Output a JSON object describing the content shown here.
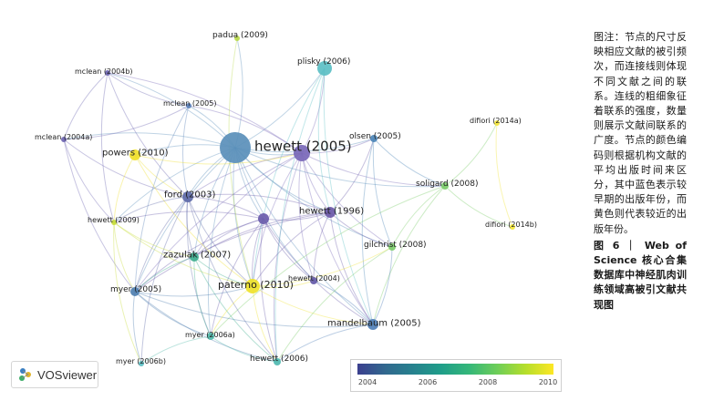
{
  "nodes": [
    {
      "id": "hewett2005",
      "label": "hewett (2005)",
      "color": "#5a8fba"
    },
    {
      "id": "plisky2006",
      "label": "plisky (2006)",
      "color": "#5bbfc4"
    },
    {
      "id": "padua2009",
      "label": "padua (2009)",
      "color": "#b9d94a"
    },
    {
      "id": "mclean2004b",
      "label": "mclean (2004b)",
      "color": "#6a63b0"
    },
    {
      "id": "mclean2005",
      "label": "mclean (2005)",
      "color": "#5a80b8"
    },
    {
      "id": "mclean2004a",
      "label": "mclean (2004a)",
      "color": "#6f66b3"
    },
    {
      "id": "powers2010",
      "label": "powers (2010)",
      "color": "#f0e02a"
    },
    {
      "id": "olsen2005",
      "label": "olsen (2005)",
      "color": "#4d87b8"
    },
    {
      "id": "difiori2014a",
      "label": "difiori (2014a)",
      "color": "#f3e636"
    },
    {
      "id": "soligard2008",
      "label": "soligard (2008)",
      "color": "#7ccc6a"
    },
    {
      "id": "difiori2014b",
      "label": "difiori (2014b)",
      "color": "#f3e636"
    },
    {
      "id": "ford2003",
      "label": "ford (2003)",
      "color": "#5e6aa8"
    },
    {
      "id": "hewett1996",
      "label": "hewett (1996)",
      "color": "#6a59a8"
    },
    {
      "id": "hewett2009",
      "label": "hewett (2009)",
      "color": "#c8dd3a"
    },
    {
      "id": "gilchrist2008",
      "label": "gilchrist (2008)",
      "color": "#7ccc6a"
    },
    {
      "id": "zazulak2007",
      "label": "zazulak (2007)",
      "color": "#3fae8f"
    },
    {
      "id": "hewett2004",
      "label": "hewett (2004)",
      "color": "#6459a8"
    },
    {
      "id": "myer2005",
      "label": "myer (2005)",
      "color": "#4f7fb0"
    },
    {
      "id": "paterno2010",
      "label": "paterno (2010)",
      "color": "#efe22a"
    },
    {
      "id": "mandelbaum2005",
      "label": "mandelbaum (2005)",
      "color": "#4f7fb8"
    },
    {
      "id": "myer2006a",
      "label": "myer (2006a)",
      "color": "#4fb8a8"
    },
    {
      "id": "hewett2006",
      "label": "hewett (2006)",
      "color": "#4fb8b0"
    },
    {
      "id": "myer2006b",
      "label": "myer (2006b)",
      "color": "#5bbfc4"
    },
    {
      "id": "hubA",
      "label": "",
      "color": "#7a68b8"
    },
    {
      "id": "hubB",
      "label": "",
      "color": "#6a5cab"
    }
  ],
  "edges": [
    [
      "hewett2005",
      "plisky2006"
    ],
    [
      "hewett2005",
      "padua2009"
    ],
    [
      "hewett2005",
      "mclean2004b"
    ],
    [
      "hewett2005",
      "mclean2005"
    ],
    [
      "hewett2005",
      "mclean2004a"
    ],
    [
      "hewett2005",
      "powers2010"
    ],
    [
      "hewett2005",
      "olsen2005"
    ],
    [
      "hewett2005",
      "ford2003"
    ],
    [
      "hewett2005",
      "hewett1996"
    ],
    [
      "hewett2005",
      "hewett2009"
    ],
    [
      "hewett2005",
      "zazulak2007"
    ],
    [
      "hewett2005",
      "myer2005"
    ],
    [
      "hewett2005",
      "paterno2010"
    ],
    [
      "hewett2005",
      "mandelbaum2005"
    ],
    [
      "hewett2005",
      "hubA"
    ],
    [
      "hewett2005",
      "hubB"
    ],
    [
      "hewett2005",
      "gilchrist2008"
    ],
    [
      "hewett2005",
      "soligard2008"
    ],
    [
      "hewett2005",
      "hewett2004"
    ],
    [
      "hewett2005",
      "myer2006a"
    ],
    [
      "hubA",
      "hewett1996"
    ],
    [
      "hubA",
      "olsen2005"
    ],
    [
      "hubA",
      "plisky2006"
    ],
    [
      "hubA",
      "ford2003"
    ],
    [
      "hubA",
      "mclean2005"
    ],
    [
      "hubA",
      "mandelbaum2005"
    ],
    [
      "hubA",
      "paterno2010"
    ],
    [
      "hubA",
      "hewett2004"
    ],
    [
      "hubA",
      "soligard2008"
    ],
    [
      "hubA",
      "gilchrist2008"
    ],
    [
      "hubA",
      "mclean2004b"
    ],
    [
      "hubA",
      "myer2005"
    ],
    [
      "hubA",
      "zazulak2007"
    ],
    [
      "hubA",
      "hewett2006"
    ],
    [
      "hubB",
      "hewett1996"
    ],
    [
      "hubB",
      "ford2003"
    ],
    [
      "hubB",
      "zazulak2007"
    ],
    [
      "hubB",
      "paterno2010"
    ],
    [
      "hubB",
      "myer2005"
    ],
    [
      "hubB",
      "hewett2009"
    ],
    [
      "hubB",
      "myer2006a"
    ],
    [
      "hubB",
      "hewett2006"
    ],
    [
      "hubB",
      "mandelbaum2005"
    ],
    [
      "hubB",
      "hewett2004"
    ],
    [
      "hewett1996",
      "ford2003"
    ],
    [
      "hewett1996",
      "paterno2010"
    ],
    [
      "hewett1996",
      "mandelbaum2005"
    ],
    [
      "hewett1996",
      "hewett2004"
    ],
    [
      "hewett1996",
      "olsen2005"
    ],
    [
      "hewett1996",
      "zazulak2007"
    ],
    [
      "hewett1996",
      "myer2005"
    ],
    [
      "hewett1996",
      "gilchrist2008"
    ],
    [
      "plisky2006",
      "hewett1996"
    ],
    [
      "plisky2006",
      "mandelbaum2005"
    ],
    [
      "plisky2006",
      "hewett2006"
    ],
    [
      "plisky2006",
      "paterno2010"
    ],
    [
      "mclean2004b",
      "mclean2005"
    ],
    [
      "mclean2004b",
      "mclean2004a"
    ],
    [
      "mclean2004b",
      "ford2003"
    ],
    [
      "mclean2004b",
      "hewett2009"
    ],
    [
      "mclean2004a",
      "mclean2005"
    ],
    [
      "mclean2004a",
      "ford2003"
    ],
    [
      "mclean2004a",
      "hewett2009"
    ],
    [
      "mclean2004a",
      "myer2005"
    ],
    [
      "mclean2005",
      "ford2003"
    ],
    [
      "mclean2005",
      "myer2005"
    ],
    [
      "powers2010",
      "ford2003"
    ],
    [
      "powers2010",
      "hewett2009"
    ],
    [
      "powers2010",
      "paterno2010"
    ],
    [
      "powers2010",
      "hubA"
    ],
    [
      "olsen2005",
      "soligard2008"
    ],
    [
      "olsen2005",
      "gilchrist2008"
    ],
    [
      "olsen2005",
      "mandelbaum2005"
    ],
    [
      "soligard2008",
      "difiori2014a"
    ],
    [
      "soligard2008",
      "difiori2014b"
    ],
    [
      "soligard2008",
      "gilchrist2008"
    ],
    [
      "soligard2008",
      "mandelbaum2005"
    ],
    [
      "soligard2008",
      "myer2006a"
    ],
    [
      "difiori2014a",
      "difiori2014b"
    ],
    [
      "ford2003",
      "hewett2009"
    ],
    [
      "ford2003",
      "zazulak2007"
    ],
    [
      "ford2003",
      "myer2005"
    ],
    [
      "ford2003",
      "paterno2010"
    ],
    [
      "ford2003",
      "myer2006a"
    ],
    [
      "ford2003",
      "myer2006b"
    ],
    [
      "ford2003",
      "hewett2006"
    ],
    [
      "hewett2009",
      "myer2005"
    ],
    [
      "hewett2009",
      "zazulak2007"
    ],
    [
      "hewett2009",
      "paterno2010"
    ],
    [
      "hewett2009",
      "myer2006b"
    ],
    [
      "zazulak2007",
      "myer2005"
    ],
    [
      "zazulak2007",
      "paterno2010"
    ],
    [
      "zazulak2007",
      "myer2006a"
    ],
    [
      "zazulak2007",
      "hewett2006"
    ],
    [
      "myer2005",
      "paterno2010"
    ],
    [
      "myer2005",
      "myer2006a"
    ],
    [
      "myer2005",
      "myer2006b"
    ],
    [
      "myer2005",
      "hewett2006"
    ],
    [
      "myer2005",
      "mandelbaum2005"
    ],
    [
      "paterno2010",
      "mandelbaum2005"
    ],
    [
      "paterno2010",
      "myer2006a"
    ],
    [
      "paterno2010",
      "hewett2006"
    ],
    [
      "paterno2010",
      "hewett2004"
    ],
    [
      "paterno2010",
      "gilchrist2008"
    ],
    [
      "mandelbaum2005",
      "gilchrist2008"
    ],
    [
      "mandelbaum2005",
      "hewett2006"
    ],
    [
      "mandelbaum2005",
      "hewett2004"
    ],
    [
      "myer2006a",
      "hewett2006"
    ],
    [
      "myer2006a",
      "myer2006b"
    ],
    [
      "gilchrist2008",
      "hewett2006"
    ],
    [
      "padua2009",
      "paterno2010"
    ]
  ],
  "legend": {
    "ticks": [
      "2004",
      "2006",
      "2008",
      "2010"
    ]
  },
  "branding": {
    "name": "VOSviewer"
  },
  "caption": {
    "body": "图注：节点的尺寸反映相应文献的被引频次，而连接线则体现不同文献之间的联系。连线的粗细象征着联系的强度，数量则展示文献间联系的广度。节点的颜色编码则根据机构文献的平均出版时间来区分，其中蓝色表示较早期的出版年份，而黄色则代表较近的出版年份。",
    "figure": "图 6 ｜ Web of Science 核心合集数据库中神经肌肉训练领域高被引文献共现图"
  }
}
